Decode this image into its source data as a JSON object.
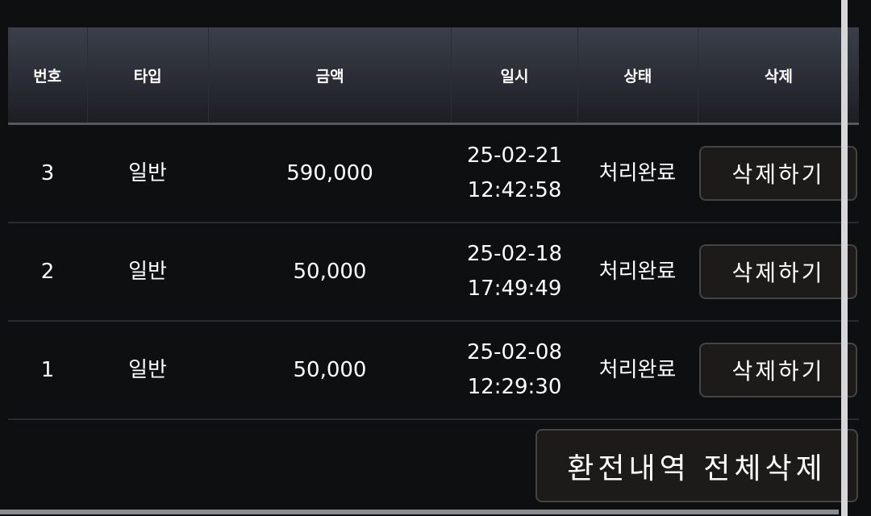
{
  "table": {
    "headers": [
      "번호",
      "타입",
      "금액",
      "일시",
      "상태",
      "삭제"
    ],
    "rows": [
      {
        "no": "3",
        "type": "일반",
        "amount": "590,000",
        "date": "25-02-21",
        "time": "12:42:58",
        "status": "처리완료",
        "action": "삭제하기"
      },
      {
        "no": "2",
        "type": "일반",
        "amount": "50,000",
        "date": "25-02-18",
        "time": "17:49:49",
        "status": "처리완료",
        "action": "삭제하기"
      },
      {
        "no": "1",
        "type": "일반",
        "amount": "50,000",
        "date": "25-02-08",
        "time": "12:29:30",
        "status": "처리완료",
        "action": "삭제하기"
      }
    ]
  },
  "delete_all_label": "환전내역 전체삭제"
}
